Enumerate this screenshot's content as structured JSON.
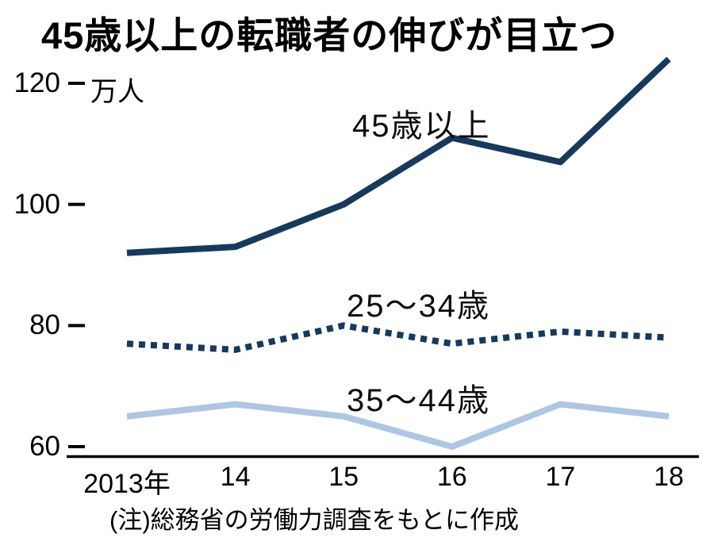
{
  "title": "45歳以上の転職者の伸びが目立つ",
  "unit_label": "万人",
  "note": "(注)総務省の労働力調査をもとに作成",
  "chart_data": {
    "type": "line",
    "title": "45歳以上の転職者の伸びが目立つ",
    "xlabel": "",
    "ylabel": "万人",
    "x_labels": [
      "2013年",
      "14",
      "15",
      "16",
      "17",
      "18"
    ],
    "x_values": [
      2013,
      2014,
      2015,
      2016,
      2017,
      2018
    ],
    "yticks": [
      60,
      80,
      100,
      120
    ],
    "ylim": [
      60,
      124
    ],
    "grid": false,
    "legend_position": "inline-annotations",
    "series": [
      {
        "name": "45歳以上",
        "style": "solid",
        "color": "#17395c",
        "values": [
          92,
          93,
          100,
          111,
          107,
          124
        ]
      },
      {
        "name": "25〜34歳",
        "style": "dotted",
        "color": "#17395c",
        "values": [
          77,
          76,
          80,
          77,
          79,
          78
        ]
      },
      {
        "name": "35〜44歳",
        "style": "solid",
        "color": "#aec6e2",
        "values": [
          65,
          67,
          65,
          60,
          67,
          65
        ]
      }
    ]
  }
}
